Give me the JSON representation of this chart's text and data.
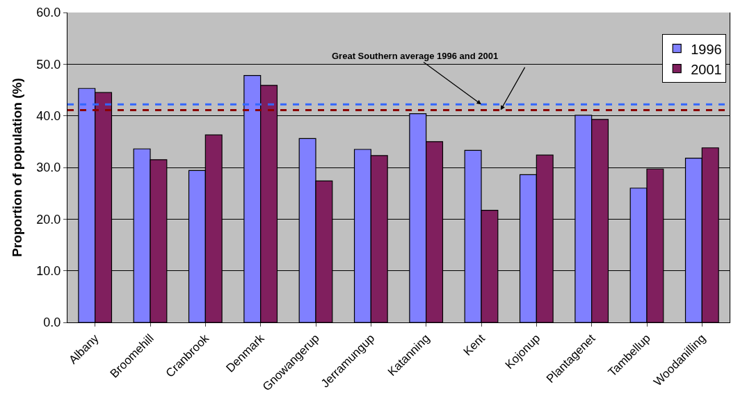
{
  "chart_data": {
    "type": "bar",
    "ylabel": "Proportion of population (%)",
    "categories": [
      "Albany",
      "Broomehill",
      "Cranbrook",
      "Denmark",
      "Gnowangerup",
      "Jerramungup",
      "Katanning",
      "Kent",
      "Kojonup",
      "Plantagenet",
      "Tambellup",
      "Woodanilling"
    ],
    "series": [
      {
        "name": "1996",
        "color": "#8080ff",
        "values": [
          45.3,
          33.6,
          29.4,
          47.8,
          35.6,
          33.5,
          40.4,
          33.3,
          28.6,
          40.1,
          26.0,
          31.8
        ]
      },
      {
        "name": "2001",
        "color": "#801f5e",
        "values": [
          44.5,
          31.5,
          36.3,
          45.9,
          27.4,
          32.3,
          35.0,
          21.7,
          32.4,
          39.3,
          29.7,
          33.8
        ]
      }
    ],
    "ref_lines": [
      {
        "axis": "y",
        "value": 42.2,
        "color": "#3366ff",
        "line_style": "dashed"
      },
      {
        "axis": "y",
        "value": 41.1,
        "color": "#8b0000",
        "line_style": "dashed"
      }
    ],
    "annotations": [
      {
        "text": "Great Southern average 1996 and 2001",
        "x": "Kent",
        "y": 42.2
      }
    ],
    "ylim": [
      0,
      60
    ],
    "yticks": [
      {
        "value": 0,
        "label": "0.0"
      },
      {
        "value": 10,
        "label": "10.0"
      },
      {
        "value": 20,
        "label": "20.0"
      },
      {
        "value": 30,
        "label": "30.0"
      },
      {
        "value": 40,
        "label": "40.0"
      },
      {
        "value": 50,
        "label": "50.0"
      },
      {
        "value": 60,
        "label": "60.0"
      }
    ],
    "grid": "y",
    "legend": "top right"
  }
}
